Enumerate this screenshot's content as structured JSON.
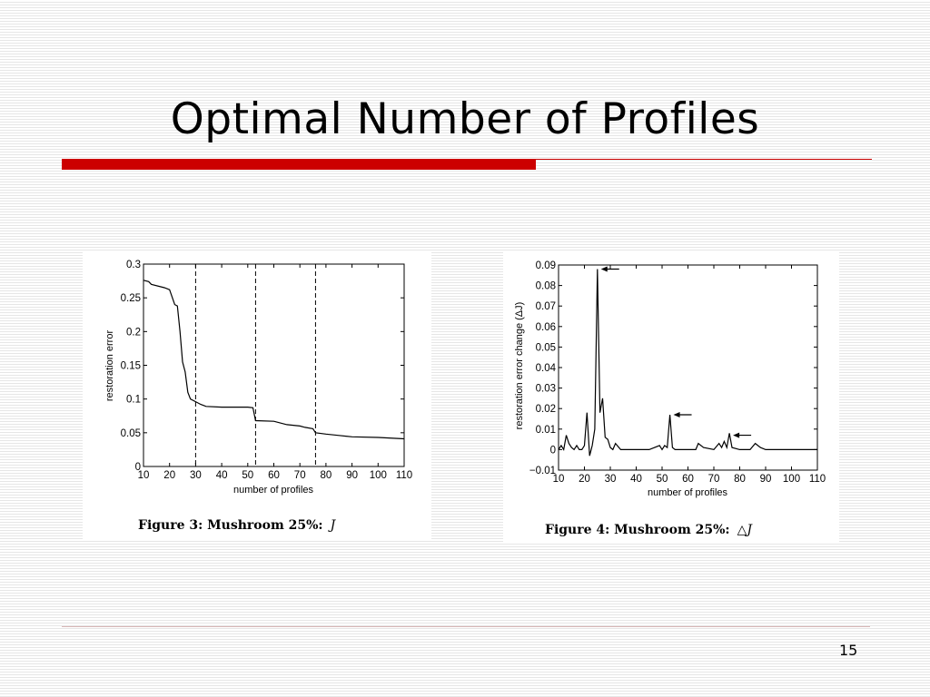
{
  "slide": {
    "title": "Optimal Number of Profiles",
    "page_number": "15"
  },
  "chart_data": [
    {
      "type": "line",
      "xlabel": "number of profiles",
      "ylabel": "restoration error",
      "xlim": [
        10,
        110
      ],
      "ylim": [
        0,
        0.3
      ],
      "xticks": [
        "10",
        "20",
        "30",
        "40",
        "50",
        "60",
        "70",
        "80",
        "90",
        "100",
        "110"
      ],
      "yticks": [
        "0",
        "0.05",
        "0.1",
        "0.15",
        "0.2",
        "0.25",
        "0.3"
      ],
      "vlines": [
        30,
        53,
        76
      ],
      "grid": false,
      "caption": {
        "label": "Figure 3:  Mushroom 25%:",
        "symbol": "J"
      },
      "series": [
        {
          "x": [
            10,
            12,
            13,
            18,
            20,
            22,
            23,
            24,
            25,
            26,
            27,
            28,
            30,
            32,
            34,
            40,
            50,
            52,
            53,
            60,
            65,
            70,
            72,
            75,
            76,
            80,
            85,
            90,
            100,
            110
          ],
          "values": [
            0.276,
            0.274,
            0.27,
            0.265,
            0.262,
            0.24,
            0.238,
            0.2,
            0.155,
            0.14,
            0.11,
            0.1,
            0.096,
            0.092,
            0.089,
            0.088,
            0.088,
            0.087,
            0.068,
            0.067,
            0.062,
            0.06,
            0.058,
            0.056,
            0.05,
            0.048,
            0.046,
            0.044,
            0.043,
            0.041
          ]
        }
      ]
    },
    {
      "type": "line",
      "xlabel": "number of profiles",
      "ylabel": "restoration error change (ΔJ)",
      "xlim": [
        10,
        110
      ],
      "ylim": [
        -0.01,
        0.09
      ],
      "xticks": [
        "10",
        "20",
        "30",
        "40",
        "50",
        "60",
        "70",
        "80",
        "90",
        "100",
        "110"
      ],
      "yticks": [
        "−0.01",
        "0",
        "0.01",
        "0.02",
        "0.03",
        "0.04",
        "0.05",
        "0.06",
        "0.07",
        "0.08",
        "0.09"
      ],
      "arrows_at": [
        [
          25,
          0.088
        ],
        [
          53,
          0.017
        ],
        [
          76,
          0.007
        ]
      ],
      "grid": false,
      "caption": {
        "label": "Figure 4:  Mushroom 25%:",
        "symbol": "△J"
      },
      "series": [
        {
          "x": [
            10,
            11,
            12,
            13,
            14,
            15,
            16,
            17,
            18,
            19,
            20,
            21,
            22,
            23,
            24,
            25,
            26,
            27,
            28,
            29,
            30,
            31,
            32,
            34,
            36,
            40,
            45,
            49,
            50,
            51,
            52,
            53,
            54,
            55,
            60,
            63,
            64,
            66,
            70,
            72,
            73,
            74,
            75,
            76,
            77,
            80,
            84,
            86,
            88,
            90,
            92,
            95,
            100,
            110
          ],
          "values": [
            0.0,
            0.002,
            0.0,
            0.007,
            0.003,
            0.001,
            0.0,
            0.002,
            0.0,
            0.0,
            0.002,
            0.018,
            -0.003,
            0.002,
            0.01,
            0.088,
            0.018,
            0.025,
            0.006,
            0.005,
            0.001,
            0.0,
            0.003,
            0.0,
            0.0,
            0.0,
            0.0,
            0.002,
            0.0,
            0.002,
            0.001,
            0.017,
            0.001,
            0.0,
            0.0,
            0.0,
            0.003,
            0.001,
            0.0,
            0.003,
            0.001,
            0.004,
            0.001,
            0.008,
            0.001,
            0.0,
            0.0,
            0.003,
            0.001,
            0.0,
            0.0,
            0.0,
            0.0,
            0.0
          ]
        }
      ]
    }
  ]
}
